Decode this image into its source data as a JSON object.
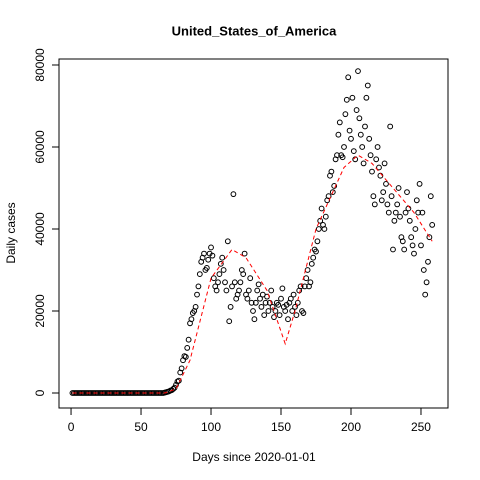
{
  "chart_data": {
    "type": "scatter",
    "title": "United_States_of_America",
    "xlabel": "Days since 2020-01-01",
    "ylabel": "Daily cases",
    "xlim": [
      -8.6,
      269.3
    ],
    "ylim": [
      -3660,
      81460
    ],
    "xticks": [
      0,
      50,
      100,
      150,
      200,
      250
    ],
    "yticks": [
      0,
      20000,
      40000,
      60000,
      80000
    ],
    "x": [
      1,
      2,
      3,
      4,
      5,
      6,
      7,
      8,
      9,
      10,
      11,
      12,
      13,
      14,
      15,
      16,
      17,
      18,
      19,
      20,
      21,
      22,
      23,
      24,
      25,
      26,
      27,
      28,
      29,
      30,
      31,
      32,
      33,
      34,
      35,
      36,
      37,
      38,
      39,
      40,
      41,
      42,
      43,
      44,
      45,
      46,
      47,
      48,
      49,
      50,
      51,
      52,
      53,
      54,
      55,
      56,
      57,
      58,
      59,
      60,
      61,
      62,
      63,
      64,
      65,
      66,
      67,
      68,
      69,
      70,
      71,
      72,
      73,
      74,
      75,
      76,
      77,
      78,
      79,
      80,
      81,
      82,
      83,
      84,
      85,
      86,
      87,
      88,
      89,
      90,
      91,
      92,
      93,
      94,
      95,
      96,
      97,
      98,
      99,
      100,
      101,
      102,
      103,
      104,
      105,
      106,
      107,
      108,
      109,
      110,
      111,
      112,
      113,
      114,
      115,
      116,
      117,
      118,
      119,
      120,
      121,
      122,
      123,
      124,
      125,
      126,
      127,
      128,
      129,
      130,
      131,
      132,
      133,
      134,
      135,
      136,
      137,
      138,
      139,
      140,
      141,
      142,
      143,
      144,
      145,
      146,
      147,
      148,
      149,
      150,
      151,
      152,
      153,
      154,
      155,
      156,
      157,
      158,
      159,
      160,
      161,
      162,
      163,
      164,
      165,
      166,
      167,
      168,
      169,
      170,
      171,
      172,
      173,
      174,
      175,
      176,
      177,
      178,
      179,
      180,
      181,
      182,
      183,
      184,
      185,
      186,
      187,
      188,
      189,
      190,
      191,
      192,
      193,
      194,
      195,
      196,
      197,
      198,
      199,
      200,
      201,
      202,
      203,
      204,
      205,
      206,
      207,
      208,
      209,
      210,
      211,
      212,
      213,
      214,
      215,
      216,
      217,
      218,
      219,
      220,
      221,
      222,
      223,
      224,
      225,
      226,
      227,
      228,
      229,
      230,
      231,
      232,
      233,
      234,
      235,
      236,
      237,
      238,
      239,
      240,
      241,
      242,
      243,
      244,
      245,
      246,
      247,
      248,
      249,
      250,
      251,
      252,
      253,
      254,
      255,
      256,
      257,
      258
    ],
    "series": [
      {
        "color": "#000000",
        "values": [
          0,
          0,
          0,
          0,
          0,
          0,
          0,
          0,
          0,
          0,
          0,
          0,
          0,
          0,
          0,
          0,
          0,
          0,
          0,
          0,
          0,
          0,
          0,
          0,
          0,
          0,
          0,
          0,
          0,
          0,
          0,
          0,
          0,
          0,
          0,
          0,
          0,
          0,
          0,
          0,
          0,
          0,
          0,
          0,
          0,
          0,
          0,
          0,
          0,
          0,
          0,
          0,
          0,
          0,
          0,
          0,
          0,
          0,
          0,
          0,
          0,
          0,
          0,
          0,
          0,
          0,
          100,
          200,
          300,
          400,
          600,
          700,
          1000,
          1300,
          2000,
          2800,
          3000,
          5000,
          6000,
          8000,
          9000,
          8800,
          11000,
          13000,
          17000,
          18000,
          19500,
          20000,
          21000,
          24000,
          26000,
          29000,
          32000,
          33000,
          34000,
          30000,
          30500,
          32500,
          34000,
          35500,
          33500,
          28000,
          26000,
          25000,
          27000,
          29000,
          31500,
          33000,
          30000,
          27000,
          25000,
          37000,
          17500,
          21000,
          26000,
          48500,
          27000,
          23000,
          24000,
          25000,
          27000,
          30000,
          29000,
          34000,
          24000,
          23000,
          25000,
          28000,
          22000,
          20000,
          18000,
          22000,
          25000,
          26500,
          23000,
          21000,
          24000,
          19000,
          22000,
          23500,
          20000,
          22000,
          25000,
          21000,
          18500,
          20000,
          22000,
          21500,
          19000,
          23000,
          25500,
          21000,
          20000,
          21500,
          18000,
          22000,
          23000,
          20000,
          24000,
          21000,
          19000,
          22000,
          25000,
          26000,
          20000,
          19500,
          26000,
          28000,
          30000,
          26000,
          27000,
          31500,
          33000,
          35000,
          34500,
          37000,
          40000,
          42000,
          45000,
          41000,
          40000,
          43000,
          47000,
          48000,
          53000,
          54000,
          49000,
          50500,
          57000,
          58000,
          63000,
          66000,
          58000,
          57500,
          60000,
          68000,
          71500,
          77000,
          64000,
          62000,
          72000,
          59000,
          57000,
          69000,
          78500,
          67000,
          63000,
          60000,
          56000,
          65000,
          72000,
          75000,
          62000,
          58000,
          54000,
          48000,
          46000,
          57000,
          60000,
          55000,
          53000,
          47000,
          49000,
          56000,
          51000,
          46000,
          44000,
          65000,
          48000,
          35000,
          42000,
          44000,
          46000,
          50000,
          43000,
          38000,
          37000,
          35000,
          44000,
          49000,
          45000,
          42000,
          38000,
          36000,
          34000,
          40000,
          47000,
          44000,
          51000,
          36000,
          44000,
          30000,
          24000,
          27000,
          32000,
          38000,
          48000,
          41000
        ]
      }
    ],
    "trend": {
      "color": "#ff0000",
      "x": [
        1,
        67,
        75,
        85,
        100,
        115,
        125,
        140,
        153,
        160,
        175,
        195,
        205,
        215,
        230,
        245,
        258
      ],
      "values": [
        0,
        0,
        1000,
        8000,
        28000,
        35000,
        33000,
        25000,
        12000,
        20000,
        40000,
        55000,
        58000,
        56000,
        50000,
        44000,
        37000
      ]
    }
  }
}
